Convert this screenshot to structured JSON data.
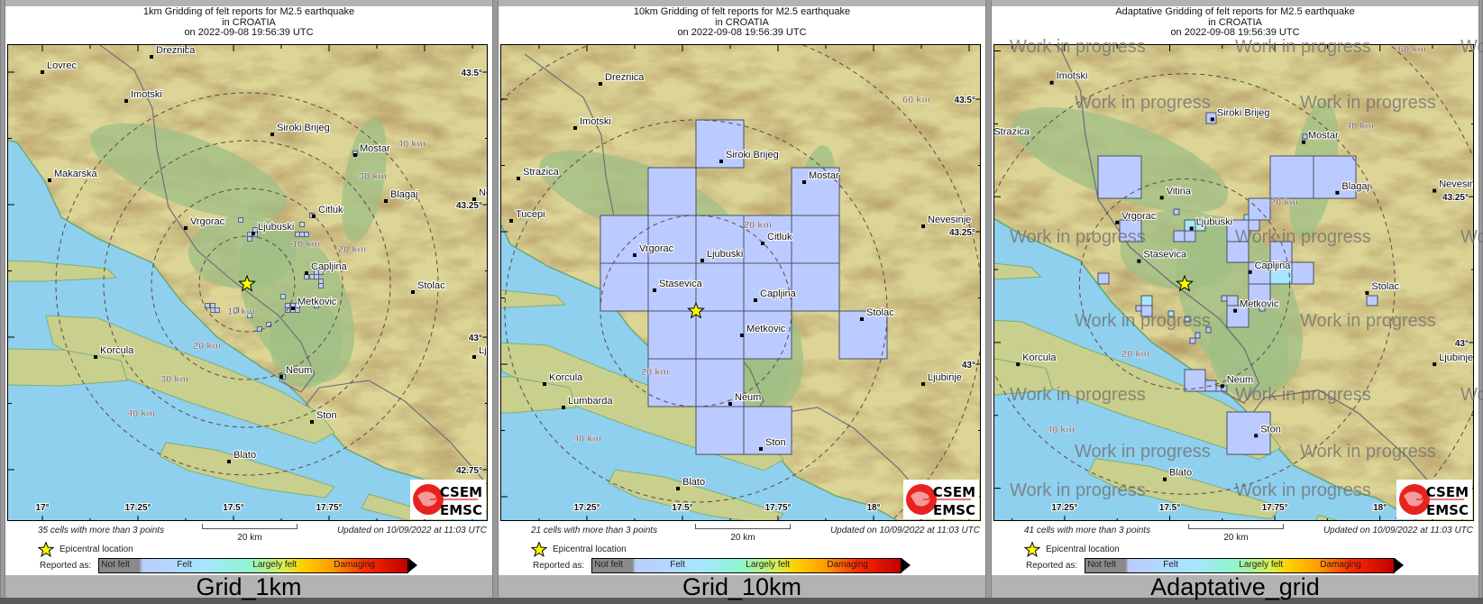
{
  "colors": {
    "cell_felt": "#bccbff",
    "cell_felt_more": "#a6e6ff",
    "sea": "#8fd0ee",
    "epicenter_star": "#ffff00",
    "distance_label": "#7a5c5c"
  },
  "legend": {
    "epicenter_label": "Epicentral location",
    "epicenter_icon": "star-icon",
    "reported_as": "Reported as:",
    "levels": [
      "Not felt",
      "Felt",
      "Largely felt",
      "Damaging"
    ]
  },
  "logo": {
    "line1": "CSEM",
    "line2": "EMSC"
  },
  "watermark": "Work in progress",
  "panels": [
    {
      "title_lines": [
        "1km Gridding of felt reports for M2.5 earthquake",
        "in CROATIA",
        "on  2022-09-08 19:56:39 UTC"
      ],
      "cells_text": "35 cells with more than 3 points",
      "scale_label": "20 km",
      "updated_text": "Updated on 10/09/2022 at 11:03 UTC",
      "caption": "Grid_1km",
      "cities": [
        "Dreznica",
        "Lovrec",
        "Imotski",
        "Siroki Brijeg",
        "Mostar",
        "Makarska",
        "Blagaj",
        "Citluk",
        "Vrgorac",
        "Ljubuski",
        "Capljina",
        "Metkovic",
        "Stolac",
        "Korcula",
        "Neum",
        "Ston",
        "Blato",
        "Nevesinje",
        "Ljubinje"
      ],
      "distance_labels": [
        "10 km",
        "10 km",
        "20 km",
        "20 km",
        "30 km",
        "30 km",
        "40 km",
        "40 km"
      ],
      "lon_ticks": [
        "17°",
        "17.25°",
        "17.5°",
        "17.75°"
      ],
      "lat_ticks": [
        "43.5°",
        "43.25°",
        "43°",
        "42.75°"
      ]
    },
    {
      "title_lines": [
        "10km Gridding of felt reports for M2.5 earthquake",
        "in CROATIA",
        "on  2022-09-08 19:56:39 UTC"
      ],
      "cells_text": "21 cells with more than 3 points",
      "scale_label": "20 km",
      "updated_text": "Updated on 10/09/2022 at 11:03 UTC",
      "caption": "Grid_10km",
      "cities": [
        "Dreznica",
        "Imotski",
        "Strazica",
        "Tucepi",
        "Siroki Brijeg",
        "Mostar",
        "Nevesinje",
        "Vrgorac",
        "Ljubuski",
        "Citluk",
        "Stasevica",
        "Capljina",
        "Metkovic",
        "Stolac",
        "Ljubinje",
        "Korcula",
        "Lumbarda",
        "Neum",
        "Ston",
        "Blato"
      ],
      "distance_labels": [
        "20 km",
        "20 km",
        "40 km",
        "60 km"
      ],
      "lon_ticks": [
        "17.25°",
        "17.5°",
        "17.75°",
        "18°"
      ],
      "lat_ticks": [
        "43.5°",
        "43.25°",
        "43°"
      ]
    },
    {
      "title_lines": [
        "Adaptative Gridding of felt reports for M2.5 earthquake",
        "in CROATIA",
        "on  2022-09-08 19:56:39 UTC"
      ],
      "cells_text": "41 cells with more than 3 points",
      "scale_label": "20 km",
      "updated_text": "Updated on 10/09/2022 at 11:03 UTC",
      "caption": "Adaptative_grid",
      "cities": [
        "Imotski",
        "Strazica",
        "Siroki Brijeg",
        "Mostar",
        "Blagaj",
        "Nevesinje",
        "Vitina",
        "Vrgorac",
        "Ljubuski",
        "Stasevica",
        "Capljina",
        "Stolac",
        "Metkovic",
        "Korcula",
        "Ljubinje",
        "Neum",
        "Ston",
        "Blato"
      ],
      "distance_labels": [
        "20 km",
        "20 km",
        "40 km",
        "40 km",
        "60 km"
      ],
      "lon_ticks": [
        "17.25°",
        "17.5°",
        "17.75°",
        "18°"
      ],
      "lat_ticks": [
        "43.25°",
        "43°"
      ]
    }
  ]
}
